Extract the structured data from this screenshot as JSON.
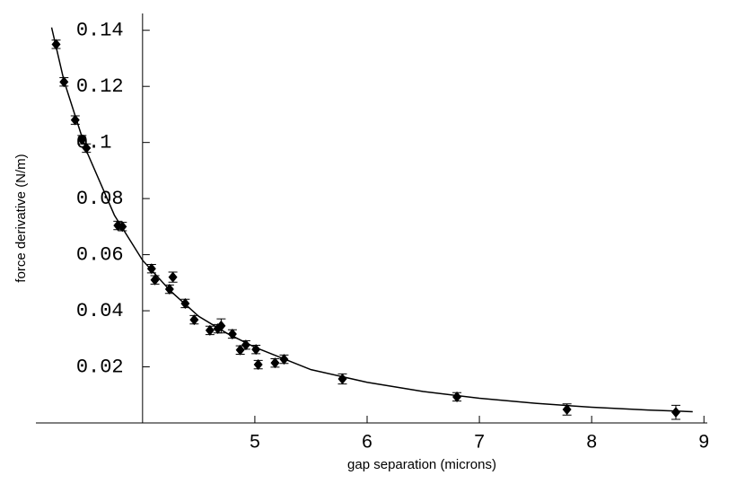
{
  "chart_data": {
    "type": "scatter",
    "x_label": "gap separation (microns)",
    "y_label": "force derivative (N/m)",
    "xlim": [
      3.05,
      9.03
    ],
    "ylim": [
      0,
      0.146
    ],
    "xticks": [
      5,
      6,
      7,
      8,
      9
    ],
    "yticks": [
      0.02,
      0.04,
      0.06,
      0.08,
      0.1,
      0.12,
      0.14
    ],
    "y_axis_at": 4,
    "series": [
      {
        "type": "scatter",
        "color": "#000000",
        "x": [
          3.23,
          3.3,
          3.4,
          3.46,
          3.5,
          3.78,
          3.82,
          4.08,
          4.11,
          4.24,
          4.27,
          4.38,
          4.46,
          4.6,
          4.67,
          4.7,
          4.8,
          4.87,
          4.92,
          5.01,
          5.03,
          5.18,
          5.26,
          5.78,
          6.8,
          7.78,
          8.75
        ],
        "values": [
          0.135,
          0.1216,
          0.108,
          0.101,
          0.098,
          0.0704,
          0.07,
          0.055,
          0.051,
          0.0477,
          0.052,
          0.0426,
          0.0368,
          0.033,
          0.0336,
          0.0346,
          0.0317,
          0.026,
          0.0278,
          0.0262,
          0.0208,
          0.0214,
          0.0227,
          0.0157,
          0.0093,
          0.0048,
          0.0038
        ],
        "errors": [
          0.0015,
          0.0015,
          0.0015,
          0.0015,
          0.0015,
          0.0015,
          0.0015,
          0.0015,
          0.0015,
          0.0015,
          0.0018,
          0.0015,
          0.0015,
          0.0015,
          0.0015,
          0.0025,
          0.0015,
          0.0015,
          0.0015,
          0.0015,
          0.0015,
          0.0015,
          0.0015,
          0.0018,
          0.0015,
          0.002,
          0.0025
        ]
      },
      {
        "type": "line",
        "color": "#000000",
        "x": [
          3.19,
          3.3,
          3.5,
          3.75,
          4.0,
          4.25,
          4.5,
          4.75,
          5.0,
          5.5,
          6.0,
          6.5,
          7.0,
          7.5,
          8.0,
          8.5,
          8.9
        ],
        "values": [
          0.141,
          0.122,
          0.097,
          0.074,
          0.058,
          0.047,
          0.038,
          0.032,
          0.027,
          0.019,
          0.0145,
          0.0112,
          0.0088,
          0.007,
          0.0056,
          0.0046,
          0.004
        ]
      }
    ]
  }
}
